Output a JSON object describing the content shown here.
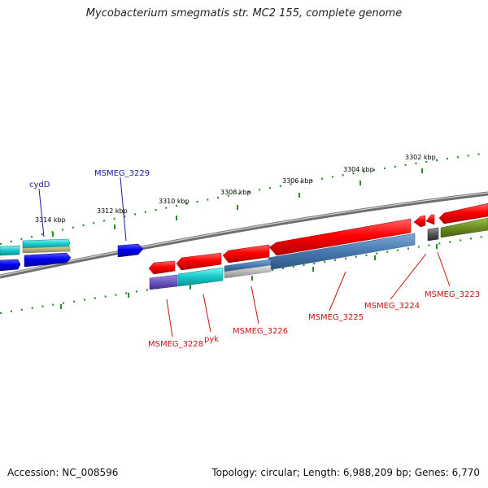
{
  "title": "Mycobacterium smegmatis str. MC2 155, complete genome",
  "accession": "Accession: NC_008596",
  "topology": "Topology: circular; Length: 6,988,209 bp; Genes: 6,770",
  "scale": {
    "unit": "kbp",
    "ticks": [
      "3302 kbp",
      "3304 kbp",
      "3306 kbp",
      "3308 kbp",
      "3310 kbp",
      "3312 kbp",
      "3314 kbp"
    ]
  },
  "colors": {
    "label_forward": "#1a1aa0",
    "label_reverse": "#cc1111",
    "backbone": "#808080",
    "tick_dot": "#2a8a2a"
  },
  "forward_labels": [
    "cydD",
    "MSMEG_3229"
  ],
  "reverse_labels": [
    "MSMEG_3228",
    "pyk",
    "MSMEG_3226",
    "MSMEG_3225",
    "MSMEG_3224",
    "MSMEG_3223"
  ]
}
